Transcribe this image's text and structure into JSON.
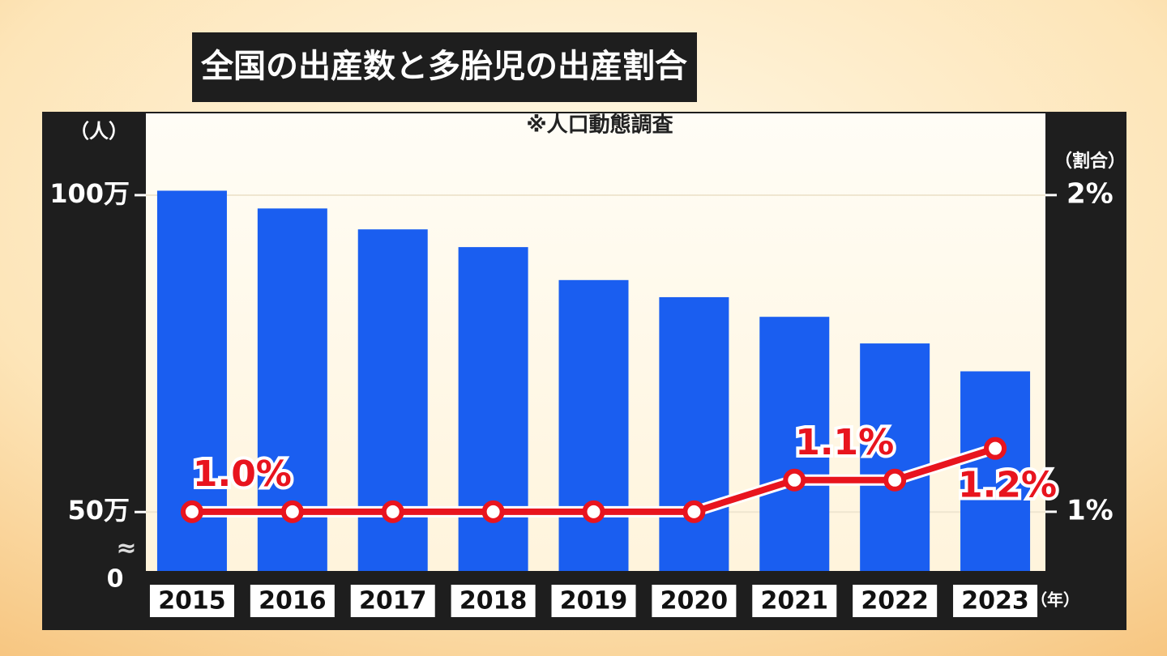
{
  "chart_data": {
    "type": "bar",
    "title": "全国の出産数と多胎児の出産割合",
    "subtitle": "※人口動態調査",
    "y_label": "（人）",
    "y2_label": "（割合）",
    "x_label": "（年）",
    "axis_break_label": "0",
    "axis_break_symbol": "≈",
    "categories": [
      "2015",
      "2016",
      "2017",
      "2018",
      "2019",
      "2020",
      "2021",
      "2022",
      "2023"
    ],
    "series": [
      {
        "type": "bar",
        "color": "#1a5ef0",
        "values": [
          1007000,
          979000,
          946000,
          918000,
          866000,
          839000,
          808000,
          766000,
          722000
        ]
      },
      {
        "type": "line",
        "axis": "y2",
        "color": "#e8141e",
        "values": [
          1.0,
          1.0,
          1.0,
          1.0,
          1.0,
          1.0,
          1.1,
          1.1,
          1.2
        ],
        "value_labels": [
          "1.0%",
          null,
          null,
          null,
          null,
          null,
          "1.1%",
          null,
          "1.2%"
        ]
      }
    ],
    "ylim": [
      407000,
      1129000
    ],
    "yticks": [
      {
        "value": 500000,
        "label": "50万"
      },
      {
        "value": 1000000,
        "label": "100万"
      }
    ],
    "y2lim": [
      0.813,
      2.258
    ],
    "y2ticks": [
      {
        "value": 1,
        "label": "1%"
      },
      {
        "value": 2,
        "label": "2%"
      }
    ],
    "grid": true
  }
}
